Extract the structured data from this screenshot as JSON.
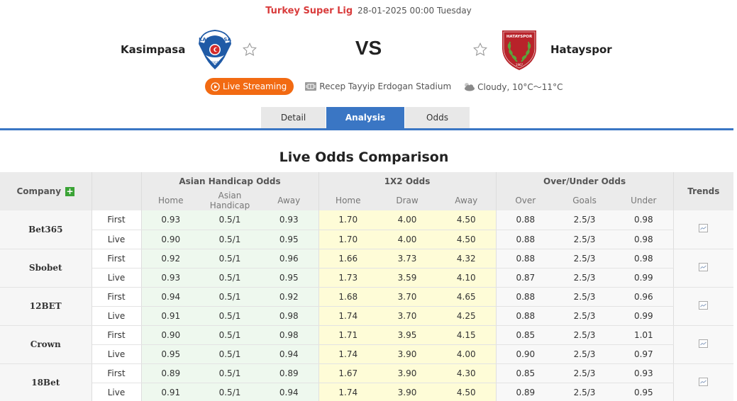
{
  "match": {
    "league": "Turkey Super Lig",
    "datetime": "28-01-2025 00:00 Tuesday",
    "home_team": "Kasimpasa",
    "away_team": "Hatayspor",
    "vs": "VS",
    "live_streaming_label": "Live Streaming",
    "venue": "Recep Tayyip Erdogan Stadium",
    "weather": "Cloudy, 10°C～11°C",
    "icons": {
      "favorite": "star-outline-icon",
      "live": "play-circle-icon",
      "venue": "stadium-icon",
      "weather": "cloudy-icon"
    }
  },
  "tabs": [
    {
      "label": "Detail",
      "active": false
    },
    {
      "label": "Analysis",
      "active": true
    },
    {
      "label": "Odds",
      "active": false
    }
  ],
  "section_title": "Live Odds Comparison",
  "table": {
    "headers": {
      "company": "Company",
      "asian_handicap": "Asian Handicap Odds",
      "x12": "1X2 Odds",
      "over_under": "Over/Under Odds",
      "trends": "Trends",
      "ah_sub": [
        "Home",
        "Asian Handicap",
        "Away"
      ],
      "x12_sub": [
        "Home",
        "Draw",
        "Away"
      ],
      "ou_sub": [
        "Over",
        "Goals",
        "Under"
      ]
    },
    "rows": [
      {
        "company": "Bet365",
        "first": {
          "label": "First",
          "ah": [
            "0.93",
            "0.5/1",
            "0.93"
          ],
          "x12": [
            "1.70",
            "4.00",
            "4.50"
          ],
          "ou": [
            "0.88",
            "2.5/3",
            "0.98"
          ]
        },
        "live": {
          "label": "Live",
          "ah": [
            "0.90",
            "0.5/1",
            "0.95"
          ],
          "x12": [
            "1.70",
            "4.00",
            "4.50"
          ],
          "ou": [
            "0.88",
            "2.5/3",
            "0.98"
          ]
        }
      },
      {
        "company": "Sbobet",
        "first": {
          "label": "First",
          "ah": [
            "0.92",
            "0.5/1",
            "0.96"
          ],
          "x12": [
            "1.66",
            "3.73",
            "4.32"
          ],
          "ou": [
            "0.88",
            "2.5/3",
            "0.98"
          ]
        },
        "live": {
          "label": "Live",
          "ah": [
            "0.93",
            "0.5/1",
            "0.95"
          ],
          "x12": [
            "1.73",
            "3.59",
            "4.10"
          ],
          "ou": [
            "0.87",
            "2.5/3",
            "0.99"
          ]
        }
      },
      {
        "company": "12BET",
        "first": {
          "label": "First",
          "ah": [
            "0.94",
            "0.5/1",
            "0.92"
          ],
          "x12": [
            "1.68",
            "3.70",
            "4.65"
          ],
          "ou": [
            "0.88",
            "2.5/3",
            "0.96"
          ]
        },
        "live": {
          "label": "Live",
          "ah": [
            "0.91",
            "0.5/1",
            "0.98"
          ],
          "x12": [
            "1.74",
            "3.70",
            "4.25"
          ],
          "ou": [
            "0.88",
            "2.5/3",
            "0.99"
          ]
        }
      },
      {
        "company": "Crown",
        "first": {
          "label": "First",
          "ah": [
            "0.90",
            "0.5/1",
            "0.98"
          ],
          "x12": [
            "1.71",
            "3.95",
            "4.15"
          ],
          "ou": [
            "0.85",
            "2.5/3",
            "1.01"
          ]
        },
        "live": {
          "label": "Live",
          "ah": [
            "0.95",
            "0.5/1",
            "0.94"
          ],
          "x12": [
            "1.74",
            "3.90",
            "4.00"
          ],
          "ou": [
            "0.90",
            "2.5/3",
            "0.97"
          ]
        }
      },
      {
        "company": "18Bet",
        "first": {
          "label": "First",
          "ah": [
            "0.89",
            "0.5/1",
            "0.89"
          ],
          "x12": [
            "1.67",
            "3.90",
            "4.30"
          ],
          "ou": [
            "0.85",
            "2.5/3",
            "0.93"
          ]
        },
        "live": {
          "label": "Live",
          "ah": [
            "0.91",
            "0.5/1",
            "0.94"
          ],
          "x12": [
            "1.74",
            "3.90",
            "4.50"
          ],
          "ou": [
            "0.89",
            "2.5/3",
            "0.95"
          ]
        }
      }
    ]
  },
  "colors": {
    "league": "#d93c3c",
    "accent": "#3a76c4",
    "live_button": "#f26a12",
    "ah_bg": "#eef8ee",
    "x12_bg": "#fefcd7",
    "plus_icon": "#3aa335"
  }
}
